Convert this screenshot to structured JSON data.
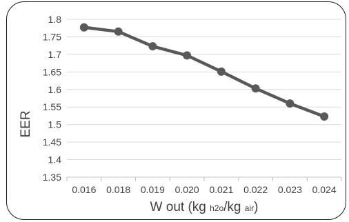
{
  "chart_data": {
    "type": "line",
    "title": "",
    "xlabel": {
      "parts": [
        {
          "text": "W out (kg ",
          "sub": false
        },
        {
          "text": "h2o",
          "sub": true
        },
        {
          "text": "/kg ",
          "sub": false
        },
        {
          "text": "air",
          "sub": true
        },
        {
          "text": ")",
          "sub": false
        }
      ]
    },
    "ylabel": "EER",
    "categories": [
      "0.016",
      "0.018",
      "0.019",
      "0.020",
      "0.021",
      "0.022",
      "0.023",
      "0.024"
    ],
    "series": [
      {
        "values": [
          1.777,
          1.765,
          1.723,
          1.697,
          1.651,
          1.603,
          1.56,
          1.523
        ]
      }
    ],
    "ylim": [
      1.35,
      1.8
    ],
    "yticks": [
      1.35,
      1.4,
      1.45,
      1.5,
      1.55,
      1.6,
      1.65,
      1.7,
      1.75,
      1.8
    ],
    "ytick_labels": [
      "1.35",
      "1.4",
      "1.45",
      "1.5",
      "1.55",
      "1.6",
      "1.65",
      "1.7",
      "1.75",
      "1.8"
    ],
    "grid": true,
    "legend": "none",
    "line_color": "#595959",
    "grid_color": "#d9d9d9",
    "axis_color": "#bfbfbf"
  }
}
